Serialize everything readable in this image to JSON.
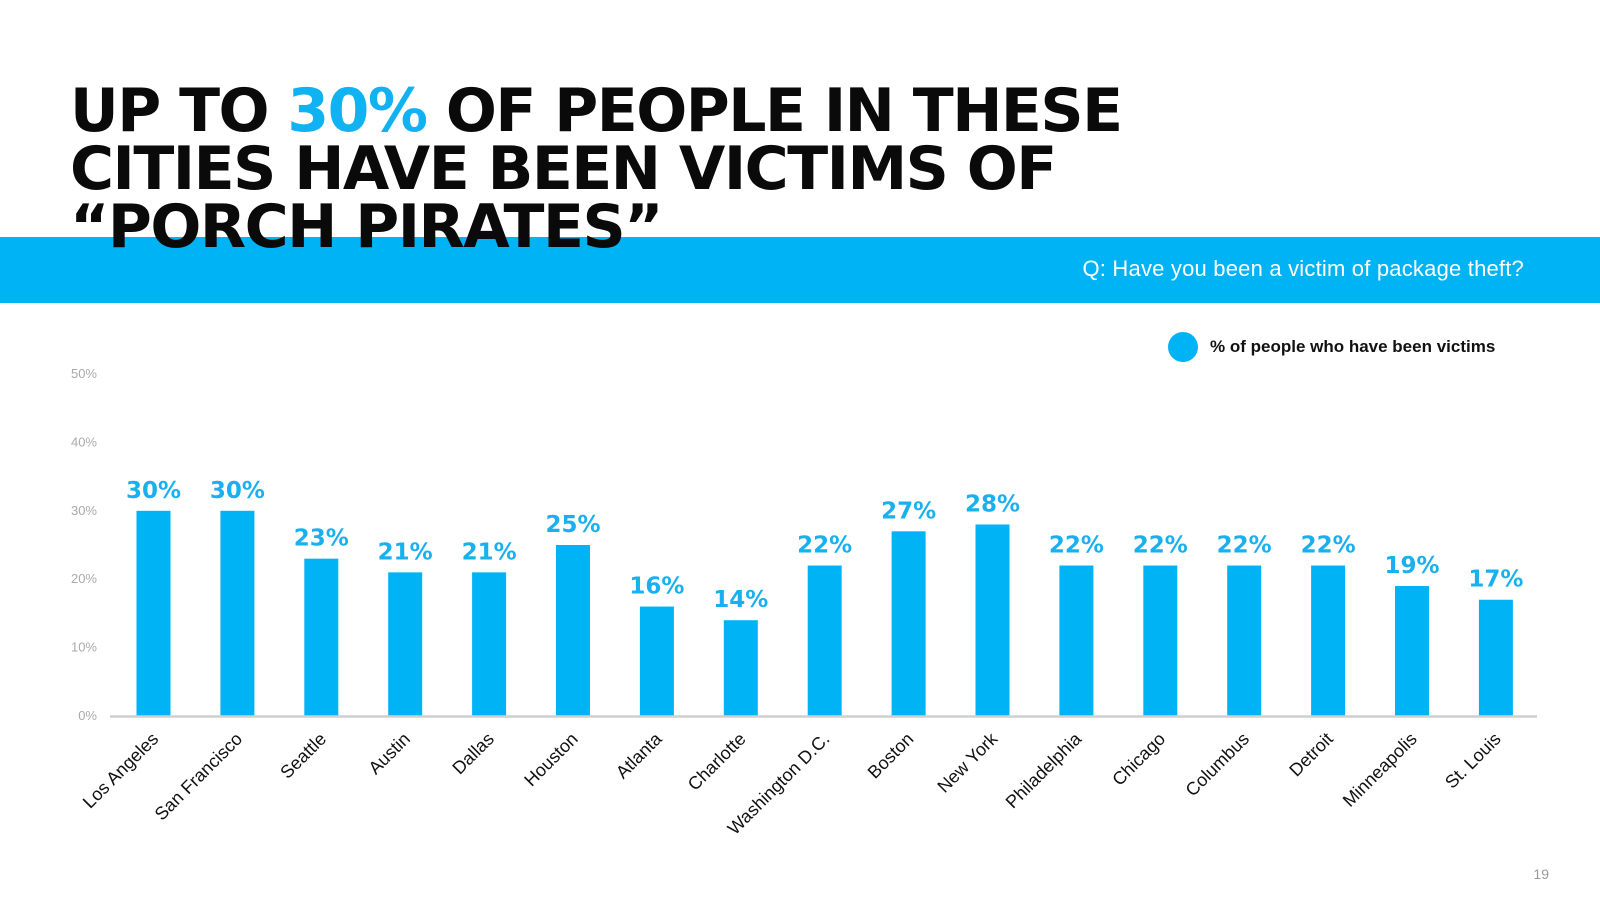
{
  "slide": {
    "headline_pre": "UP TO ",
    "headline_highlight": "30%",
    "headline_post": " OF PEOPLE IN THESE CITIES HAVE BEEN VICTIMS OF “PORCH PIRATES”",
    "question": "Q: Have you been a victim of package theft?",
    "page_number": "19"
  },
  "colors": {
    "accent": "#00b3f5",
    "title": "#0a0a0a",
    "axis": "#cfcfcf",
    "tick_label": "#aaaaaa",
    "value_label": "#19b0f0",
    "category_label": "#111111"
  },
  "chart_data": {
    "type": "bar",
    "categories": [
      "Los Angeles",
      "San Francisco",
      "Seattle",
      "Austin",
      "Dallas",
      "Houston",
      "Atlanta",
      "Charlotte",
      "Washington D.C.",
      "Boston",
      "New York",
      "Philadelphia",
      "Chicago",
      "Columbus",
      "Detroit",
      "Minneapolis",
      "St. Louis"
    ],
    "series": [
      {
        "name": "% of people who have been victims",
        "values": [
          30,
          30,
          23,
          21,
          21,
          25,
          16,
          14,
          22,
          27,
          28,
          22,
          22,
          22,
          22,
          19,
          17
        ],
        "value_labels": [
          "30%",
          "30%",
          "23%",
          "21%",
          "21%",
          "25%",
          "16%",
          "14%",
          "22%",
          "27%",
          "28%",
          "22%",
          "22%",
          "22%",
          "22%",
          "19%",
          "17%"
        ]
      }
    ],
    "yticks": [
      0,
      10,
      20,
      30,
      40,
      50
    ],
    "ytick_labels": [
      "0%",
      "10%",
      "20%",
      "30%",
      "40%",
      "50%"
    ],
    "ylim": [
      0,
      50
    ],
    "grid": false,
    "legend": "top-right",
    "category_label_rotation": "-45deg"
  }
}
